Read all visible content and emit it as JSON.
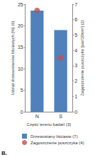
{
  "chart_data": {
    "type": "bar",
    "categories": [
      "N",
      "S"
    ],
    "xlabel": "Część terenu badań (3)",
    "ylabel": "Udział drzewostanów liściastych [%] (6)",
    "y2label": "Zagęszczenie puszczyka [par/10km²] (2)",
    "ylim": [
      0,
      25
    ],
    "yticks": [
      0,
      5,
      10,
      15,
      20,
      25
    ],
    "y2lim": [
      0,
      7
    ],
    "y2ticks": [
      0,
      1,
      2,
      3,
      4,
      5,
      6,
      7
    ],
    "series": [
      {
        "name": "Drzewostany liściaste (7)",
        "type": "bar",
        "color": "#4f81bd",
        "values": [
          23.5,
          19
        ]
      },
      {
        "name": "Zagęszczenie puszczyka (4)",
        "type": "scatter",
        "marker": "circle",
        "color": "#c0504d",
        "values": [
          6.6,
          3.5
        ],
        "axis": "y2"
      }
    ],
    "legend": "bottom",
    "annotation": "B.",
    "grid": false
  }
}
